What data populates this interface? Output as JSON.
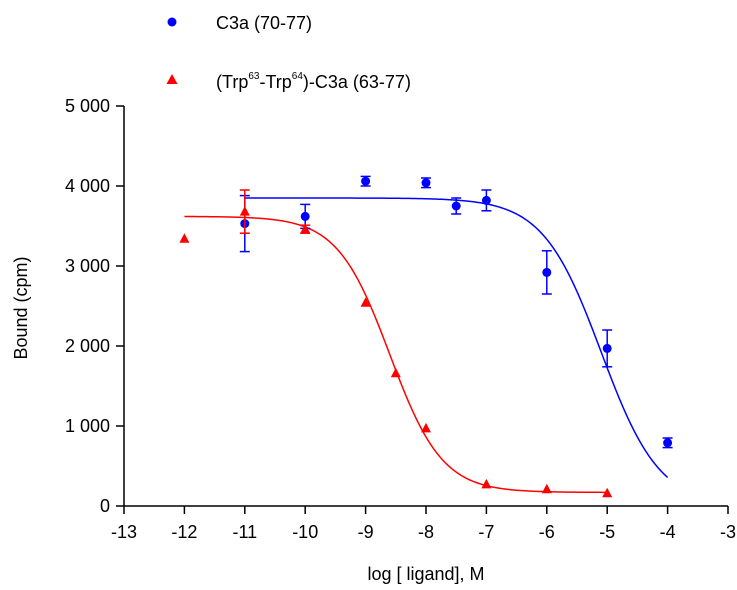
{
  "chart_data": {
    "type": "scatter",
    "xlabel": "log [ ligand], M",
    "ylabel": "Bound (cpm)",
    "xlim": [
      -13,
      -3
    ],
    "ylim": [
      0,
      5000
    ],
    "xticks": [
      "-13",
      "-12",
      "-11",
      "-10",
      "-9",
      "-8",
      "-7",
      "-6",
      "-5",
      "-4",
      "-3"
    ],
    "yticks": [
      "0",
      "1 000",
      "2 000",
      "3 000",
      "4 000",
      "5 000"
    ],
    "grid": false,
    "legend_position": "top-left",
    "series": [
      {
        "name": "C3a (70-77)",
        "marker": "circle",
        "color": "#0000ff",
        "points": [
          {
            "x": -11,
            "y": 3530,
            "err": 350
          },
          {
            "x": -10,
            "y": 3620,
            "err": 150
          },
          {
            "x": -9,
            "y": 4060,
            "err": 60
          },
          {
            "x": -8,
            "y": 4040,
            "err": 60
          },
          {
            "x": -7.5,
            "y": 3750,
            "err": 100
          },
          {
            "x": -7,
            "y": 3820,
            "err": 130
          },
          {
            "x": -6,
            "y": 2920,
            "err": 270
          },
          {
            "x": -5,
            "y": 1970,
            "err": 230
          },
          {
            "x": -4,
            "y": 790,
            "err": 60
          }
        ],
        "fit": {
          "top": 3850,
          "bottom": 0,
          "log_ic50": -5.1,
          "hill": 0.9
        }
      },
      {
        "name_parts": [
          "(Trp",
          "63",
          "-Trp",
          "64",
          ")-C3a (63-77)"
        ],
        "marker": "triangle",
        "color": "#ff0000",
        "points": [
          {
            "x": -12,
            "y": 3340,
            "err": 0
          },
          {
            "x": -11,
            "y": 3680,
            "err": 270
          },
          {
            "x": -10,
            "y": 3460,
            "err": 50
          },
          {
            "x": -9,
            "y": 2540,
            "err": 0
          },
          {
            "x": -8.5,
            "y": 1660,
            "err": 0
          },
          {
            "x": -8,
            "y": 970,
            "err": 0
          },
          {
            "x": -7,
            "y": 270,
            "err": 0
          },
          {
            "x": -6,
            "y": 210,
            "err": 0
          },
          {
            "x": -5,
            "y": 160,
            "err": 0
          }
        ],
        "fit": {
          "top": 3620,
          "bottom": 170,
          "log_ic50": -8.6,
          "hill": 1.0
        }
      }
    ]
  }
}
